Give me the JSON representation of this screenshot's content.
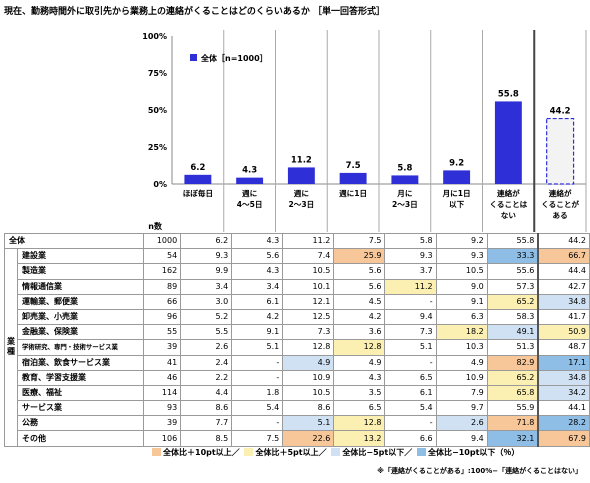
{
  "title": "現在、勤務時間外に取引先から業務上の連絡がくることはどのくらいあるか ［単一回答形式］",
  "colors": {
    "bar": "#2f2fd8",
    "dashed_bar": "#2f2fd8",
    "hi10": "#f7c79a",
    "hi5": "#fbefb2",
    "lo5": "#cfe1f3",
    "lo10": "#8ebde6"
  },
  "chart_data": {
    "type": "bar",
    "categories": [
      "ほぼ毎日",
      "週に\n4〜5日",
      "週に\n2〜3日",
      "週に1日",
      "月に\n2〜3日",
      "月に1日\n以下",
      "連絡が\nくることは\nない",
      "連絡が\nくることが\nある"
    ],
    "series": [
      {
        "name": "全体［n=1000］",
        "values": [
          6.2,
          4.3,
          11.2,
          7.5,
          5.8,
          9.2,
          55.8,
          44.2
        ]
      }
    ],
    "value_labels": [
      "6.2",
      "4.3",
      "11.2",
      "7.5",
      "5.8",
      "9.2",
      "55.8",
      "44.2"
    ],
    "dashed_last": true,
    "ylim": [
      0,
      100
    ],
    "yticks": [
      "0%",
      "25%",
      "50%",
      "75%",
      "100%"
    ],
    "legend_label": "全体［n=1000］",
    "legend_position": "top-left"
  },
  "table": {
    "n_header": "n数",
    "group_label": "業\n種",
    "total_row": {
      "label": "全体",
      "n": "1000",
      "values": [
        "6.2",
        "4.3",
        "11.2",
        "7.5",
        "5.8",
        "9.2",
        "55.8",
        "44.2"
      ]
    },
    "rows": [
      {
        "label": "建設業",
        "n": "54",
        "values": [
          "9.3",
          "5.6",
          "7.4",
          "25.9",
          "9.3",
          "9.3",
          "33.3",
          "66.7"
        ],
        "hl": [
          "",
          "",
          "",
          "hi10",
          "",
          "",
          "lo10",
          "hi10"
        ]
      },
      {
        "label": "製造業",
        "n": "162",
        "values": [
          "9.9",
          "4.3",
          "10.5",
          "5.6",
          "3.7",
          "10.5",
          "55.6",
          "44.4"
        ],
        "hl": [
          "",
          "",
          "",
          "",
          "",
          "",
          "",
          ""
        ]
      },
      {
        "label": "情報通信業",
        "n": "89",
        "values": [
          "3.4",
          "3.4",
          "10.1",
          "5.6",
          "11.2",
          "9.0",
          "57.3",
          "42.7"
        ],
        "hl": [
          "",
          "",
          "",
          "",
          "hi5",
          "",
          "",
          ""
        ]
      },
      {
        "label": "運輸業、郵便業",
        "n": "66",
        "values": [
          "3.0",
          "6.1",
          "12.1",
          "4.5",
          "-",
          "9.1",
          "65.2",
          "34.8"
        ],
        "hl": [
          "",
          "",
          "",
          "",
          "",
          "",
          "hi5",
          "lo5"
        ]
      },
      {
        "label": "卸売業、小売業",
        "n": "96",
        "values": [
          "5.2",
          "4.2",
          "12.5",
          "4.2",
          "9.4",
          "6.3",
          "58.3",
          "41.7"
        ],
        "hl": [
          "",
          "",
          "",
          "",
          "",
          "",
          "",
          ""
        ]
      },
      {
        "label": "金融業、保険業",
        "n": "55",
        "values": [
          "5.5",
          "9.1",
          "7.3",
          "3.6",
          "7.3",
          "18.2",
          "49.1",
          "50.9"
        ],
        "hl": [
          "",
          "",
          "",
          "",
          "",
          "hi5",
          "lo5",
          "hi5"
        ]
      },
      {
        "label": "学術研究、専門・技術サービス業",
        "n": "39",
        "values": [
          "2.6",
          "5.1",
          "12.8",
          "12.8",
          "5.1",
          "10.3",
          "51.3",
          "48.7"
        ],
        "hl": [
          "",
          "",
          "",
          "hi5",
          "",
          "",
          "",
          ""
        ],
        "small": true
      },
      {
        "label": "宿泊業、飲食サービス業",
        "n": "41",
        "values": [
          "2.4",
          "-",
          "4.9",
          "4.9",
          "-",
          "4.9",
          "82.9",
          "17.1"
        ],
        "hl": [
          "",
          "",
          "lo5",
          "",
          "",
          "",
          "hi10",
          "lo10"
        ]
      },
      {
        "label": "教育、学習支援業",
        "n": "46",
        "values": [
          "2.2",
          "-",
          "10.9",
          "4.3",
          "6.5",
          "10.9",
          "65.2",
          "34.8"
        ],
        "hl": [
          "",
          "",
          "",
          "",
          "",
          "",
          "hi5",
          "lo5"
        ]
      },
      {
        "label": "医療、福祉",
        "n": "114",
        "values": [
          "4.4",
          "1.8",
          "10.5",
          "3.5",
          "6.1",
          "7.9",
          "65.8",
          "34.2"
        ],
        "hl": [
          "",
          "",
          "",
          "",
          "",
          "",
          "hi5",
          "lo5"
        ]
      },
      {
        "label": "サービス業",
        "n": "93",
        "values": [
          "8.6",
          "5.4",
          "8.6",
          "6.5",
          "5.4",
          "9.7",
          "55.9",
          "44.1"
        ],
        "hl": [
          "",
          "",
          "",
          "",
          "",
          "",
          "",
          ""
        ]
      },
      {
        "label": "公務",
        "n": "39",
        "values": [
          "7.7",
          "-",
          "5.1",
          "12.8",
          "-",
          "2.6",
          "71.8",
          "28.2"
        ],
        "hl": [
          "",
          "",
          "lo5",
          "hi5",
          "",
          "lo5",
          "hi10",
          "lo10"
        ]
      },
      {
        "label": "その他",
        "n": "106",
        "values": [
          "8.5",
          "7.5",
          "22.6",
          "13.2",
          "6.6",
          "9.4",
          "32.1",
          "67.9"
        ],
        "hl": [
          "",
          "",
          "hi10",
          "hi5",
          "",
          "",
          "lo10",
          "hi10"
        ]
      }
    ]
  },
  "legend": {
    "hi10": "全体比＋10pt以上／",
    "hi5": "全体比＋5pt以上／",
    "lo5": "全体比−5pt以下／",
    "lo10": "全体比−10pt以下（％）"
  },
  "footnote": "※「連絡がくることがある」:100%−「連絡がくることはない」"
}
